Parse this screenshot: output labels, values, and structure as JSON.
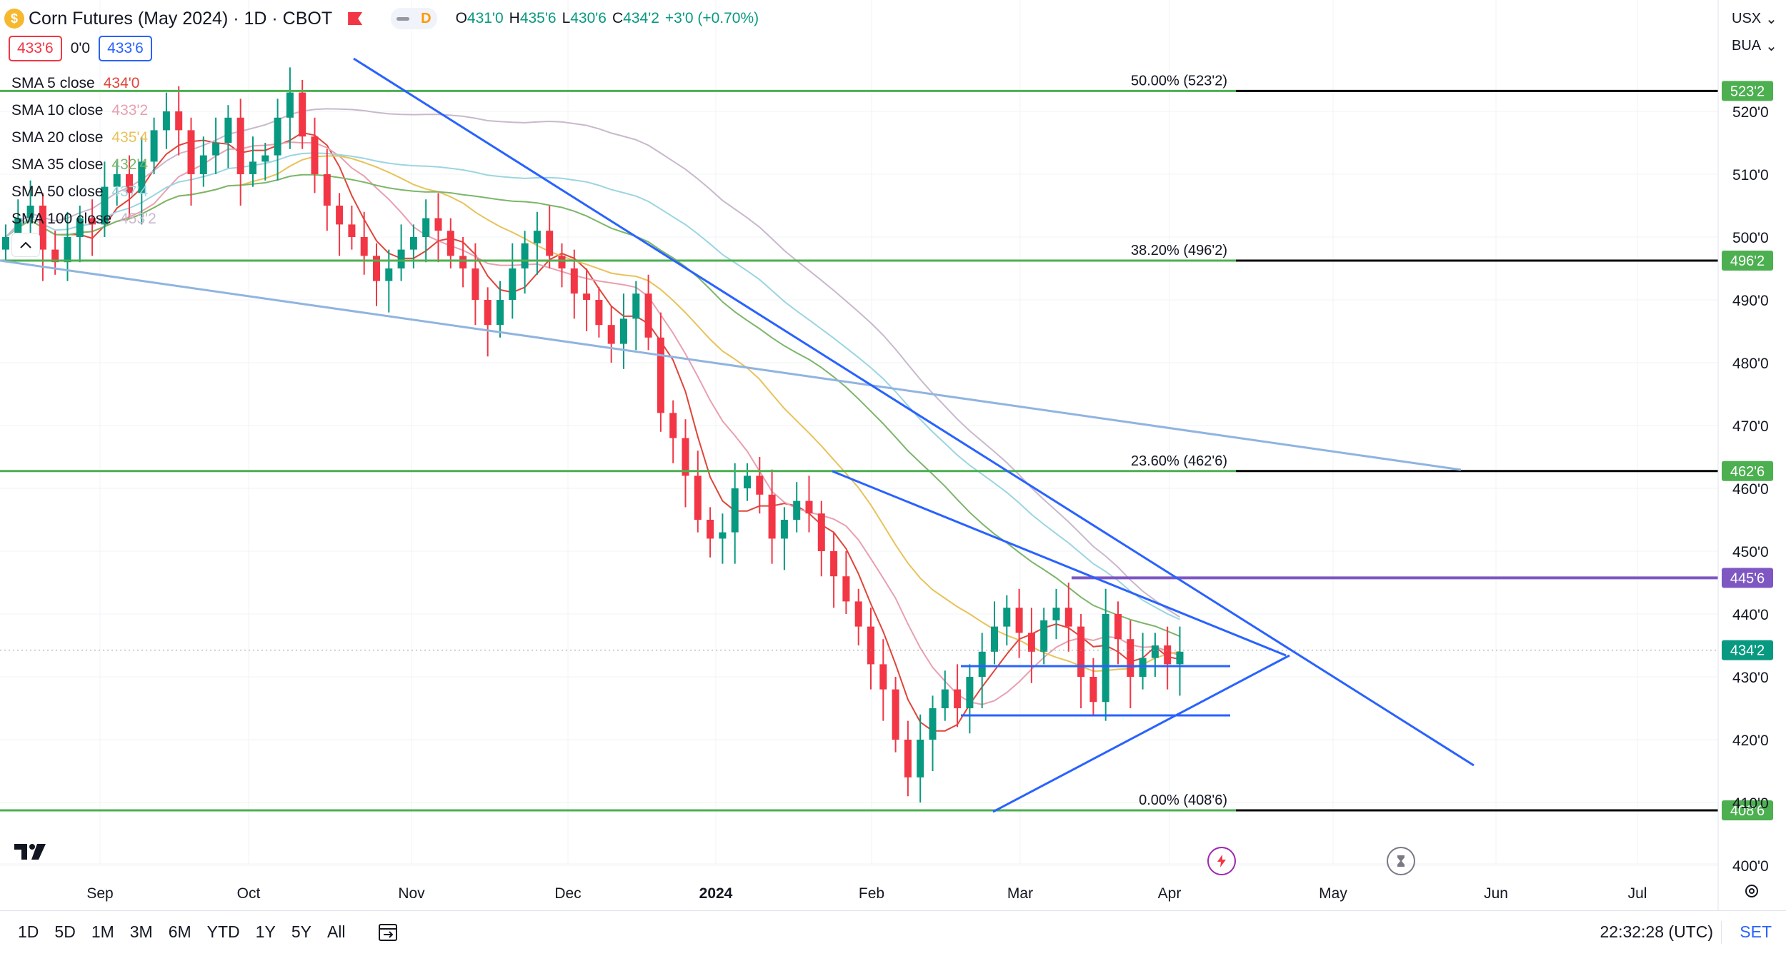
{
  "header": {
    "title": "Corn Futures (May 2024) · 1D · CBOT",
    "coin_glyph": "$",
    "interval_badge": "D",
    "ohlc": [
      {
        "k": "O",
        "v": "431'0"
      },
      {
        "k": "H",
        "v": "435'6"
      },
      {
        "k": "L",
        "v": "430'6"
      },
      {
        "k": "C",
        "v": "434'2"
      },
      {
        "k": "",
        "v": "+3'0 (+0.70%)"
      }
    ]
  },
  "price_boxes": {
    "sell": "433'6",
    "spread": "0'0",
    "buy": "433'6"
  },
  "legend": [
    {
      "name": "SMA 5 close",
      "value": "434'0",
      "color": "#e0453a"
    },
    {
      "name": "SMA 10 close",
      "value": "433'2",
      "color": "#e8a0b0"
    },
    {
      "name": "SMA 20 close",
      "value": "435'4",
      "color": "#e8c25a"
    },
    {
      "name": "SMA 35 close",
      "value": "432'4",
      "color": "#7cb66a"
    },
    {
      "name": "SMA 50 close",
      "value": "437'4",
      "color": "#9bd5e0"
    },
    {
      "name": "SMA 100 close",
      "value": "453'2",
      "color": "#c9b8cc"
    }
  ],
  "collapse_icon": "chevron-up-icon",
  "axis_controls": {
    "currency": "USX",
    "unit": "BUA"
  },
  "y_axis": {
    "ticks": [
      "520'0",
      "510'0",
      "500'0",
      "490'0",
      "480'0",
      "470'0",
      "460'0",
      "450'0",
      "440'0",
      "430'0",
      "420'0",
      "410'0",
      "400'0"
    ]
  },
  "x_axis": {
    "ticks": [
      "Sep",
      "Oct",
      "Nov",
      "Dec",
      "2024",
      "Feb",
      "Mar",
      "Apr",
      "May",
      "Jun",
      "Jul"
    ]
  },
  "fib_levels": [
    {
      "label": "50.00% (523'2)",
      "tag": "523'2",
      "price": 523.25
    },
    {
      "label": "38.20% (496'2)",
      "tag": "496'2",
      "price": 496.25
    },
    {
      "label": "23.60% (462'6)",
      "tag": "462'6",
      "price": 462.75
    },
    {
      "label": "0.00% (408'6)",
      "tag": "408'6",
      "price": 408.75
    }
  ],
  "horizontal_level": {
    "tag": "445'6",
    "price": 445.75,
    "color": "#7e57c2"
  },
  "last_price": {
    "tag": "434'2",
    "price": 434.25
  },
  "colors": {
    "up": "#089981",
    "down": "#f23645",
    "fib": "#4caf50",
    "trend": "#2962ff",
    "trend_light": "#90b4e0",
    "text": "#131722"
  },
  "bottom_bar": {
    "ranges": [
      "1D",
      "5D",
      "1M",
      "3M",
      "6M",
      "YTD",
      "1Y",
      "5Y",
      "All"
    ],
    "time": "22:32:28 (UTC)",
    "settings": "SET"
  },
  "chart_data": {
    "type": "candlestick",
    "title": "Corn Futures (May 2024) · 1D · CBOT",
    "ylim": [
      397,
      533
    ],
    "series_note": "daily close approximations",
    "closes": [
      [
        1,
        500
      ],
      [
        2,
        503
      ],
      [
        3,
        505
      ],
      [
        4,
        498
      ],
      [
        5,
        496
      ],
      [
        6,
        500
      ],
      [
        7,
        503
      ],
      [
        8,
        502
      ],
      [
        9,
        508
      ],
      [
        10,
        510
      ],
      [
        11,
        507
      ],
      [
        12,
        512
      ],
      [
        13,
        517
      ],
      [
        14,
        520
      ],
      [
        15,
        517
      ],
      [
        16,
        510
      ],
      [
        17,
        513
      ],
      [
        18,
        515
      ],
      [
        19,
        519
      ],
      [
        20,
        510
      ],
      [
        21,
        512
      ],
      [
        22,
        513
      ],
      [
        23,
        519
      ],
      [
        24,
        523
      ],
      [
        25,
        516
      ],
      [
        26,
        510
      ],
      [
        27,
        505
      ],
      [
        28,
        502
      ],
      [
        29,
        500
      ],
      [
        30,
        497
      ],
      [
        31,
        493
      ],
      [
        32,
        495
      ],
      [
        33,
        498
      ],
      [
        34,
        500
      ],
      [
        35,
        503
      ],
      [
        36,
        501
      ],
      [
        37,
        497
      ],
      [
        38,
        495
      ],
      [
        39,
        490
      ],
      [
        40,
        486
      ],
      [
        41,
        490
      ],
      [
        42,
        495
      ],
      [
        43,
        499
      ],
      [
        44,
        501
      ],
      [
        45,
        497
      ],
      [
        46,
        495
      ],
      [
        47,
        491
      ],
      [
        48,
        490
      ],
      [
        49,
        486
      ],
      [
        50,
        483
      ],
      [
        51,
        487
      ],
      [
        52,
        491
      ],
      [
        53,
        484
      ],
      [
        54,
        472
      ],
      [
        55,
        468
      ],
      [
        56,
        462
      ],
      [
        57,
        455
      ],
      [
        58,
        452
      ],
      [
        59,
        453
      ],
      [
        60,
        460
      ],
      [
        61,
        462
      ],
      [
        62,
        459
      ],
      [
        63,
        452
      ],
      [
        64,
        455
      ],
      [
        65,
        458
      ],
      [
        66,
        456
      ],
      [
        67,
        450
      ],
      [
        68,
        446
      ],
      [
        69,
        442
      ],
      [
        70,
        438
      ],
      [
        71,
        432
      ],
      [
        72,
        428
      ],
      [
        73,
        420
      ],
      [
        74,
        414
      ],
      [
        75,
        420
      ],
      [
        76,
        425
      ],
      [
        77,
        428
      ],
      [
        78,
        425
      ],
      [
        79,
        430
      ],
      [
        80,
        434
      ],
      [
        81,
        438
      ],
      [
        82,
        441
      ],
      [
        83,
        437
      ],
      [
        84,
        434
      ],
      [
        85,
        439
      ],
      [
        86,
        441
      ],
      [
        87,
        438
      ],
      [
        88,
        430
      ],
      [
        89,
        426
      ],
      [
        90,
        440
      ],
      [
        91,
        436
      ],
      [
        92,
        430
      ],
      [
        93,
        433
      ],
      [
        94,
        435
      ],
      [
        95,
        432
      ],
      [
        96,
        434
      ]
    ]
  }
}
